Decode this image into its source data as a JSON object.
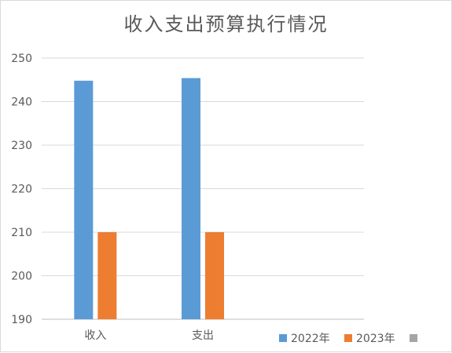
{
  "chart_data": {
    "type": "bar",
    "title": "收入支出预算执行情况",
    "categories": [
      "收入",
      "支出",
      ""
    ],
    "series": [
      {
        "name": "2022年",
        "values": [
          244.8,
          245.4,
          null
        ],
        "color": "#5b9bd5"
      },
      {
        "name": "2023年",
        "values": [
          210,
          210,
          null
        ],
        "color": "#ed7d31"
      },
      {
        "name": "",
        "values": [
          null,
          null,
          null
        ],
        "color": "#a5a5a5"
      }
    ],
    "ylim": [
      190,
      250
    ],
    "yticks": [
      190,
      200,
      210,
      220,
      230,
      240,
      250
    ],
    "grid": true,
    "legend": "bottom-right"
  }
}
